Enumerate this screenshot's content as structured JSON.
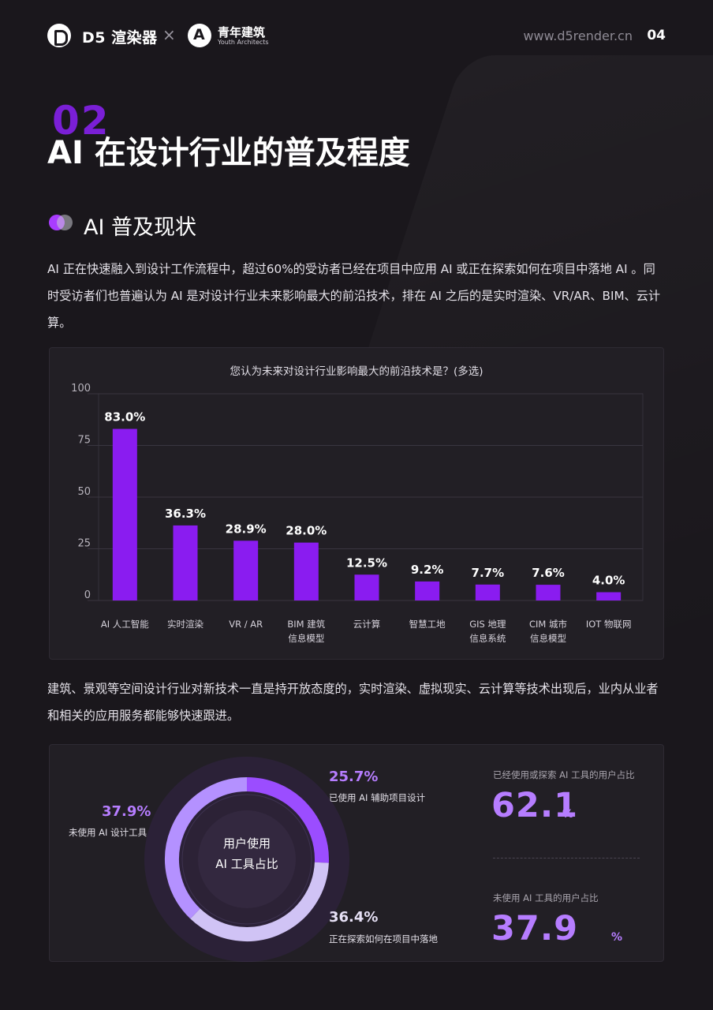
{
  "header": {
    "brand_d5": "D5 渲染器",
    "times": "×",
    "brand_ya": "青年建筑",
    "brand_ya_sub": "Youth Architects",
    "website": "www.d5render.cn",
    "page_number": "04"
  },
  "section": {
    "number": "02",
    "title": "AI 在设计行业的普及程度",
    "subtitle": "AI 普及现状"
  },
  "paragraphs": {
    "p1": "AI 正在快速融入到设计工作流程中，超过60%的受访者已经在项目中应用 AI 或正在探索如何在项目中落地 AI 。同时受访者们也普遍认为 AI 是对设计行业未来影响最大的前沿技术，排在 AI 之后的是实时渲染、VR/AR、BIM、云计算。",
    "p2": "建筑、景观等空间设计行业对新技术一直是持开放态度的，实时渲染、虚拟现实、云计算等技术出现后，业内从业者和相关的应用服务都能够快速跟进。"
  },
  "chart_data": [
    {
      "type": "bar",
      "title": "您认为未来对设计行业影响最大的前沿技术是？(多选)",
      "categories": [
        "AI 人工智能",
        "实时渲染",
        "VR / AR",
        "BIM 建筑\n信息模型",
        "云计算",
        "智慧工地",
        "GIS 地理\n信息系统",
        "CIM 城市\n信息模型",
        "IOT 物联网"
      ],
      "values": [
        83.0,
        36.3,
        28.9,
        28.0,
        12.5,
        9.2,
        7.7,
        7.6,
        4.0
      ],
      "value_labels": [
        "83.0%",
        "36.3%",
        "28.9%",
        "28.0%",
        "12.5%",
        "9.2%",
        "7.7%",
        "7.6%",
        "4.0%"
      ],
      "yticks": [
        0,
        25,
        50,
        75,
        100
      ],
      "ylim": [
        0,
        100
      ],
      "grid": true,
      "color": "#8a1cf0"
    },
    {
      "type": "pie",
      "title": "用户使用\nAI 工具占比",
      "slices": [
        {
          "label": "已使用 AI 辅助项目设计",
          "value": 25.7,
          "display": "25.7%",
          "color": "#9b4dff"
        },
        {
          "label": "正在探索如何在项目中落地",
          "value": 36.4,
          "display": "36.4%",
          "color": "#d0c3f5"
        },
        {
          "label": "未使用 AI 设计工具",
          "value": 37.9,
          "display": "37.9%",
          "color": "#b491ff"
        }
      ]
    }
  ],
  "stats": {
    "used_caption": "已经使用或探索 AI 工具的用户占比",
    "used_value": "62.1",
    "unit": "%",
    "unused_caption": "未使用 AI 工具的用户占比",
    "unused_value": "37.9"
  }
}
